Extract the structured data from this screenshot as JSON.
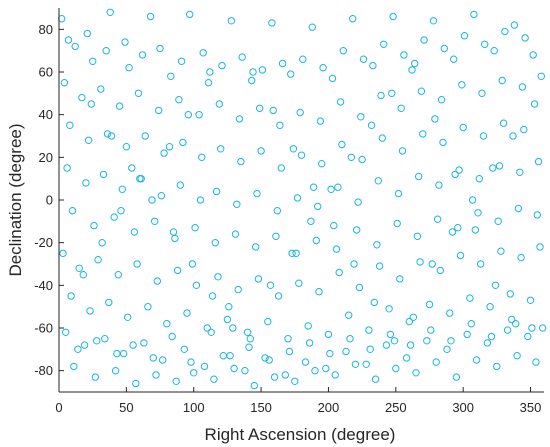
{
  "chart_data": {
    "type": "scatter",
    "title": "",
    "xlabel": "Right Ascension (degree)",
    "ylabel": "Declination (degree)",
    "xlim": [
      0,
      360
    ],
    "ylim": [
      -90,
      90
    ],
    "xticks": [
      0,
      50,
      100,
      150,
      200,
      250,
      300,
      350
    ],
    "yticks": [
      80,
      60,
      40,
      20,
      0,
      -20,
      -40,
      -60,
      -80
    ],
    "grid": false,
    "legend": "none",
    "marker": "open-circle",
    "color": "#1ab6dd",
    "series": [
      {
        "x": [
          2,
          12,
          25,
          38,
          52,
          68,
          83,
          97,
          112,
          128,
          143,
          158,
          172,
          188,
          203,
          218,
          233,
          248,
          262,
          278,
          293,
          308,
          323,
          338,
          352,
          4,
          17,
          31,
          45,
          59,
          74,
          89,
          104,
          119,
          134,
          149,
          164,
          179,
          194,
          209,
          224,
          239,
          254,
          269,
          284,
          299,
          314,
          329,
          344,
          358,
          8,
          22,
          36,
          50,
          64,
          78,
          92,
          106,
          120,
          135,
          150,
          165,
          180,
          195,
          210,
          225,
          240,
          255,
          270,
          285,
          300,
          315,
          330,
          345,
          6,
          20,
          33,
          47,
          61,
          76,
          90,
          105,
          117,
          132,
          147,
          162,
          177,
          192,
          207,
          222,
          237,
          252,
          267,
          282,
          297,
          312,
          327,
          342,
          356,
          10,
          26,
          41,
          56,
          71,
          86,
          101,
          116,
          131,
          146,
          161,
          176,
          191,
          206,
          221,
          236,
          251,
          266,
          281,
          296,
          311,
          326,
          341,
          355,
          3,
          15,
          29,
          44,
          58,
          73,
          88,
          102,
          118,
          133,
          148,
          163,
          178,
          193,
          208,
          223,
          238,
          253,
          268,
          283,
          298,
          313,
          328,
          343,
          357,
          9,
          23,
          37,
          51,
          66,
          80,
          95,
          110,
          125,
          140,
          155,
          170,
          185,
          200,
          215,
          230,
          245,
          260,
          275,
          290,
          305,
          320,
          335,
          350,
          5,
          19,
          34,
          48,
          63,
          77,
          93,
          108,
          122,
          138,
          153,
          168,
          183,
          198,
          213,
          228,
          243,
          258,
          273,
          288,
          303,
          318,
          333,
          348,
          359,
          11,
          27,
          42,
          57,
          72,
          87,
          100,
          115,
          130,
          145,
          160,
          175,
          190,
          205,
          220,
          235,
          250,
          265,
          280,
          295,
          310,
          325,
          340,
          354,
          7,
          21,
          35,
          49,
          62,
          75,
          91,
          107,
          121,
          136,
          151,
          166,
          181,
          196,
          211,
          226,
          241,
          256,
          271,
          286,
          301,
          316,
          331,
          346,
          14,
          28,
          43,
          55,
          70,
          84,
          98,
          113,
          127,
          141,
          156,
          171,
          186,
          201,
          216,
          231,
          246,
          261,
          276,
          291,
          306,
          321,
          336,
          351,
          18,
          32,
          46,
          60,
          82,
          96,
          111,
          126,
          142,
          157,
          173,
          187,
          202,
          217,
          232,
          247,
          263,
          277,
          292,
          307,
          322,
          337,
          353,
          24,
          39,
          54,
          69,
          85,
          99,
          114,
          129,
          144,
          159,
          174,
          189,
          204,
          219,
          234,
          249,
          264,
          279,
          294,
          309,
          324,
          339
        ],
        "y": [
          85,
          72,
          65,
          88,
          62,
          86,
          58,
          87,
          60,
          84,
          56,
          83,
          59,
          81,
          57,
          85,
          63,
          86,
          61,
          84,
          66,
          87,
          70,
          82,
          68,
          55,
          48,
          52,
          44,
          50,
          42,
          47,
          40,
          45,
          38,
          43,
          35,
          41,
          37,
          46,
          39,
          49,
          43,
          51,
          47,
          54,
          50,
          56,
          53,
          58,
          35,
          28,
          31,
          25,
          30,
          22,
          27,
          20,
          24,
          18,
          23,
          15,
          21,
          17,
          26,
          19,
          29,
          23,
          31,
          27,
          34,
          30,
          36,
          33,
          15,
          8,
          12,
          5,
          10,
          2,
          7,
          0,
          4,
          -2,
          3,
          -5,
          1,
          -3,
          6,
          -1,
          9,
          3,
          11,
          7,
          14,
          10,
          16,
          13,
          18,
          -5,
          -12,
          -8,
          -15,
          -10,
          -18,
          -13,
          -20,
          -16,
          -22,
          -17,
          -25,
          -19,
          -23,
          -14,
          -21,
          -11,
          -17,
          -9,
          -13,
          -6,
          -10,
          -4,
          -7,
          -25,
          -32,
          -28,
          -35,
          -30,
          -38,
          -33,
          -40,
          -36,
          -42,
          -37,
          -45,
          -39,
          -43,
          -34,
          -41,
          -31,
          -37,
          -29,
          -33,
          -26,
          -30,
          -24,
          -27,
          -22,
          -45,
          -52,
          -48,
          -55,
          -50,
          -58,
          -53,
          -60,
          -56,
          -62,
          -57,
          -65,
          -59,
          -63,
          -54,
          -61,
          -51,
          -57,
          -49,
          -53,
          -46,
          -50,
          -44,
          -47,
          -62,
          -68,
          -65,
          -72,
          -67,
          -75,
          -70,
          -78,
          -73,
          -80,
          -74,
          -82,
          -76,
          -79,
          -71,
          -77,
          -68,
          -74,
          -66,
          -70,
          -63,
          -67,
          -61,
          -64,
          -60,
          -78,
          -83,
          -80,
          -86,
          -82,
          -85,
          -81,
          -84,
          -79,
          -87,
          -83,
          -85,
          -80,
          -82,
          -77,
          -84,
          -79,
          -81,
          -76,
          -83,
          -75,
          -78,
          -73,
          -76,
          75,
          78,
          70,
          74,
          68,
          71,
          65,
          69,
          63,
          67,
          61,
          64,
          66,
          62,
          70,
          66,
          73,
          68,
          75,
          71,
          77,
          73,
          79,
          76,
          -70,
          -66,
          -72,
          -68,
          -74,
          -64,
          -76,
          -62,
          -73,
          -69,
          -75,
          -71,
          -67,
          -72,
          -65,
          -70,
          -63,
          -68,
          -61,
          -66,
          -58,
          -64,
          -56,
          -60,
          -35,
          -20,
          -5,
          10,
          25,
          40,
          55,
          -50,
          -65,
          -40,
          -25,
          -10,
          5,
          20,
          35,
          50,
          -55,
          -30,
          -15,
          0,
          15,
          30,
          45,
          45,
          30,
          15,
          0,
          -15,
          -30,
          -45,
          -60,
          60,
          42,
          24,
          6,
          -12,
          -30,
          -48,
          -66,
          64,
          38,
          12,
          -14,
          -40,
          -58
        ]
      }
    ]
  }
}
